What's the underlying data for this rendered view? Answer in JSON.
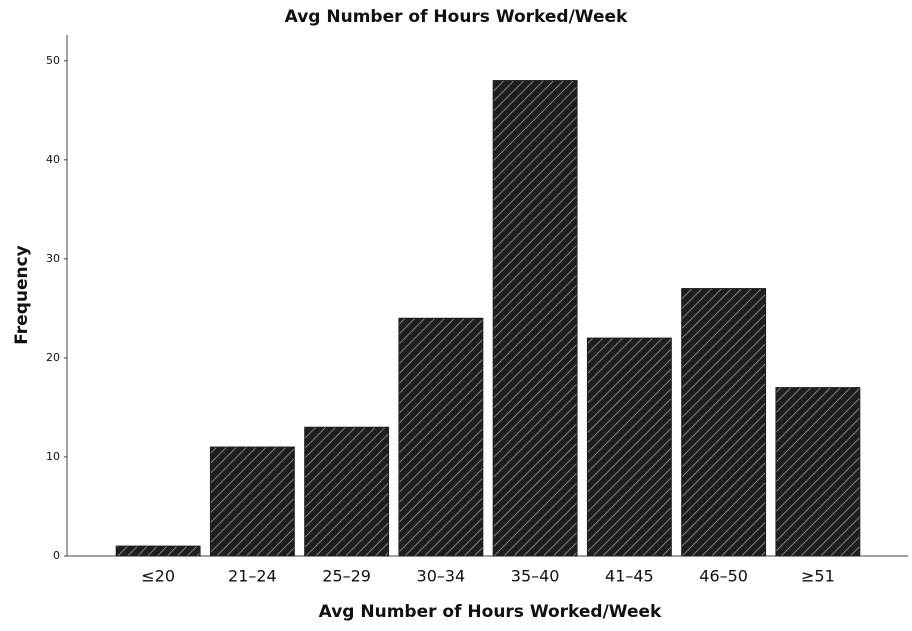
{
  "chart_data": {
    "type": "bar",
    "title": "Avg Number of Hours Worked/Week",
    "x_label": "Avg Number of Hours Worked/Week",
    "y_label": "Frequency",
    "categories": [
      "≤20",
      "21–24",
      "25–29",
      "30–34",
      "35–40",
      "41–45",
      "46–50",
      "≥51"
    ],
    "values": [
      1,
      11,
      13,
      24,
      48,
      22,
      27,
      17
    ],
    "color": "#1e1e1e",
    "ylim": [
      0,
      52.6
    ],
    "yticks": [
      0,
      10,
      20,
      30,
      40,
      50
    ],
    "grid": false
  }
}
